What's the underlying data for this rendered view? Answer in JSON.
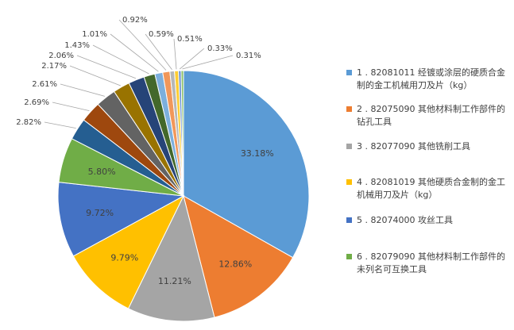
{
  "chart_data": {
    "type": "pie",
    "colors": {
      "label_text": "#404040",
      "leader_line": "#a6a6a6",
      "slice_border": "#ffffff"
    },
    "legend_placement": "right",
    "slices": [
      {
        "label": "1 . 82081011 经镀或涂层的硬质合金制的金工机械用刀及片（kg）",
        "value": 33.18,
        "display": "33.18%",
        "color": "#5b9bd5"
      },
      {
        "label": "2 . 82075090 其他材料制工作部件的钻孔工具",
        "value": 12.86,
        "display": "12.86%",
        "color": "#ed7d31"
      },
      {
        "label": "3 . 82077090 其他铣削工具",
        "value": 11.21,
        "display": "11.21%",
        "color": "#a5a5a5"
      },
      {
        "label": "4 . 82081019 其他硬质合金制的金工机械用刀及片（kg）",
        "value": 9.79,
        "display": "9.79%",
        "color": "#ffc000"
      },
      {
        "label": "5 . 82074000 攻丝工具",
        "value": 9.72,
        "display": "9.72%",
        "color": "#4472c4"
      },
      {
        "label": "6 . 82079090 其他材料制工作部件的未列名可互换工具",
        "value": 5.8,
        "display": "5.80%",
        "color": "#70ad47"
      },
      {
        "label": "",
        "value": 2.82,
        "display": "2.82%",
        "color": "#255e91"
      },
      {
        "label": "",
        "value": 2.69,
        "display": "2.69%",
        "color": "#9e480e"
      },
      {
        "label": "",
        "value": 2.61,
        "display": "2.61%",
        "color": "#636363"
      },
      {
        "label": "",
        "value": 2.17,
        "display": "2.17%",
        "color": "#997300"
      },
      {
        "label": "",
        "value": 2.06,
        "display": "2.06%",
        "color": "#264478"
      },
      {
        "label": "",
        "value": 1.43,
        "display": "1.43%",
        "color": "#43682b"
      },
      {
        "label": "",
        "value": 1.01,
        "display": "1.01%",
        "color": "#7cafdd"
      },
      {
        "label": "",
        "value": 0.92,
        "display": "0.92%",
        "color": "#f1975a"
      },
      {
        "label": "",
        "value": 0.59,
        "display": "0.59%",
        "color": "#b7b7b7"
      },
      {
        "label": "",
        "value": 0.51,
        "display": "0.51%",
        "color": "#ffcd33"
      },
      {
        "label": "",
        "value": 0.33,
        "display": "0.33%",
        "color": "#698ed0"
      },
      {
        "label": "",
        "value": 0.31,
        "display": "0.31%",
        "color": "#8cc168"
      }
    ]
  }
}
